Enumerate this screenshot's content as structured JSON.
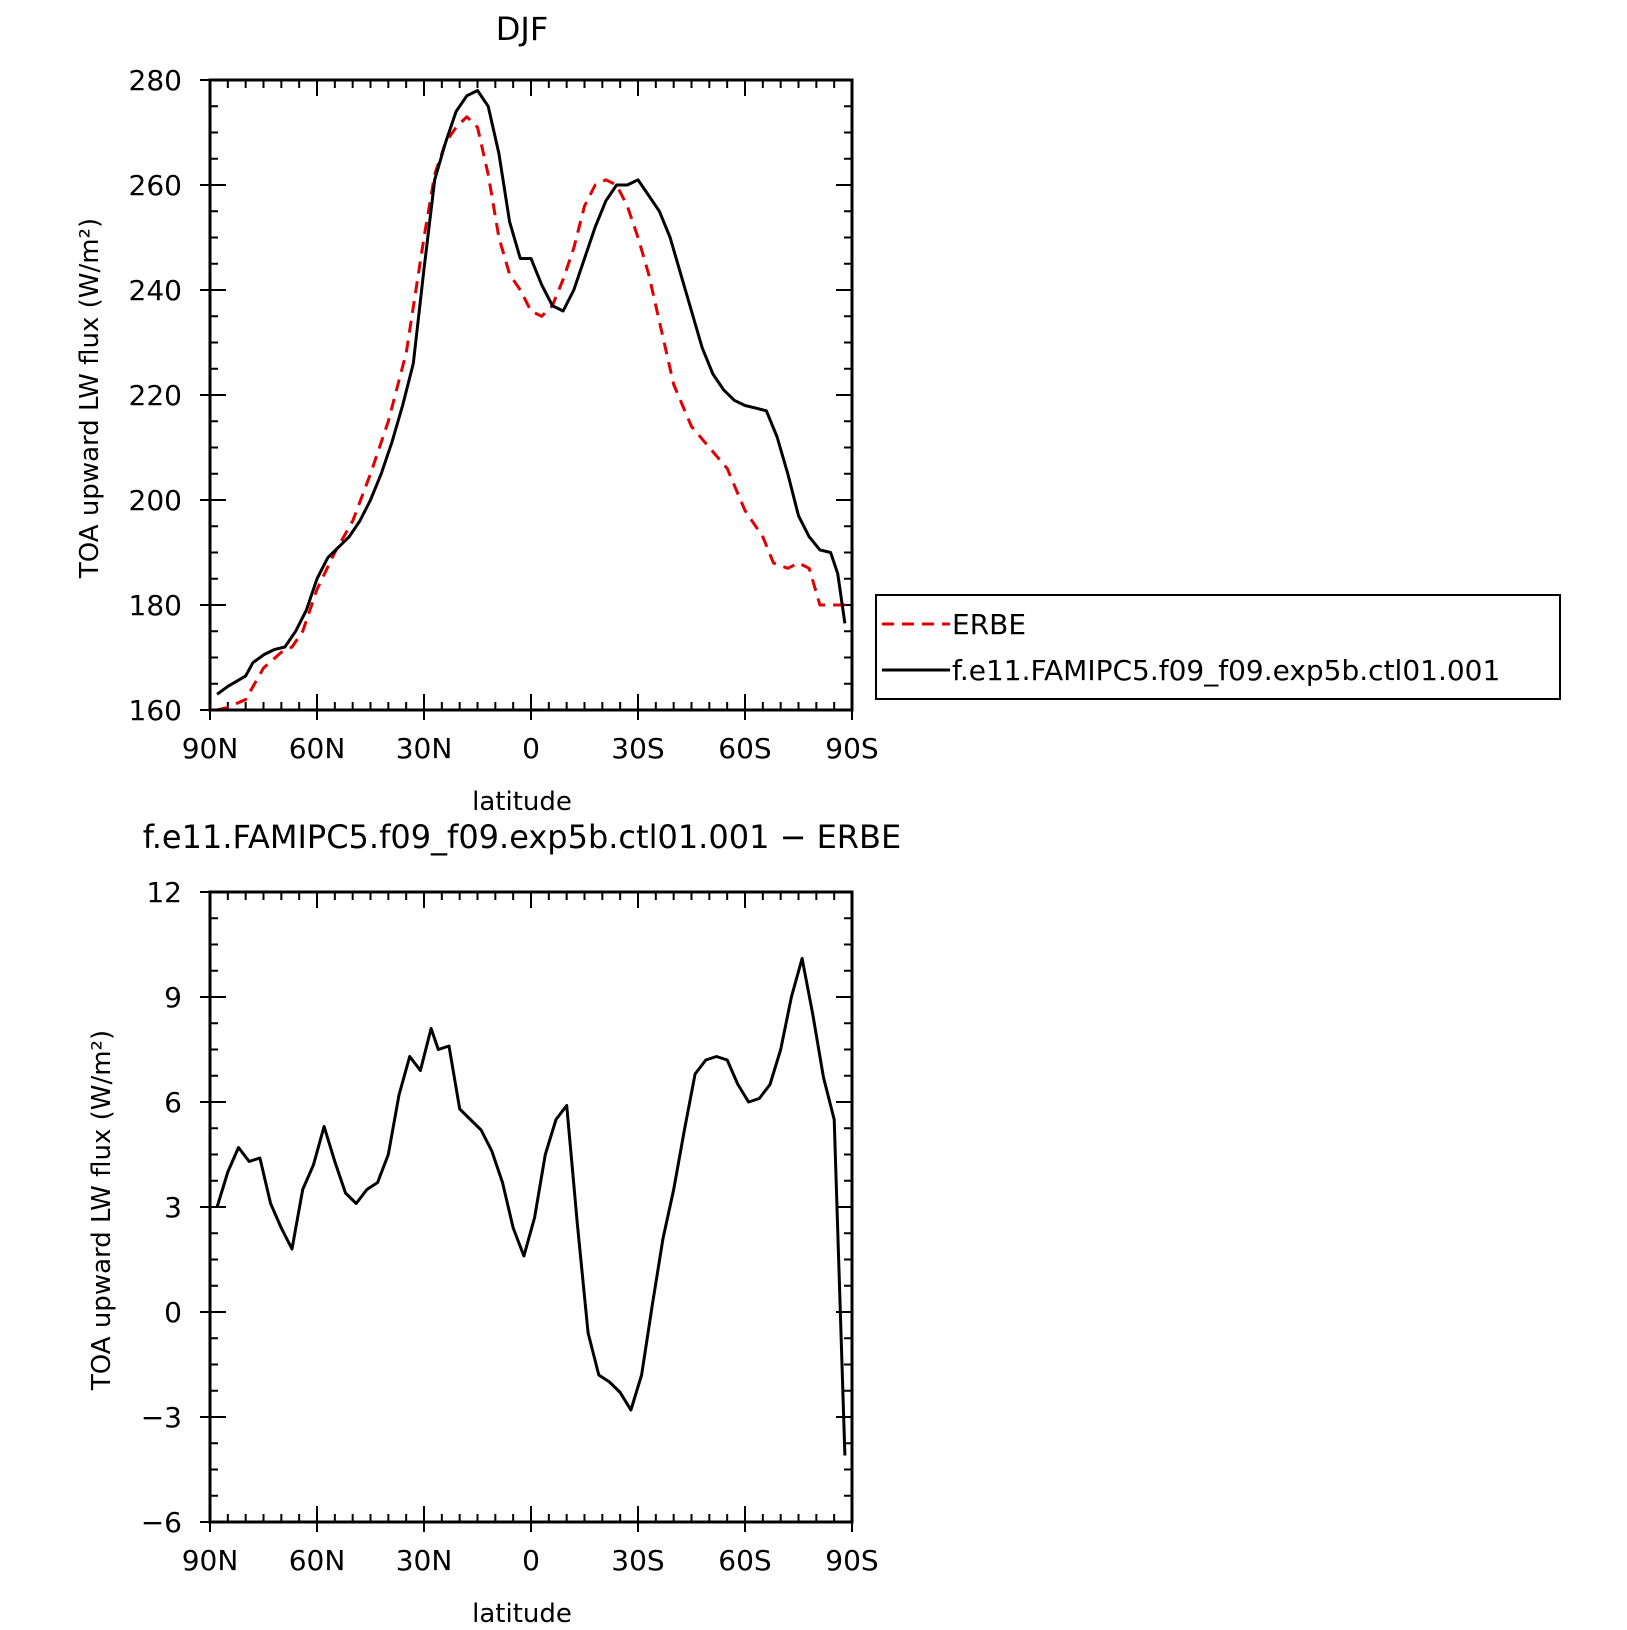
{
  "chart_data": [
    {
      "type": "line",
      "title": "DJF",
      "xlabel": "latitude",
      "ylabel": "TOA upward LW flux (W/m²)",
      "xlim": [
        -90,
        90
      ],
      "ylim": [
        160,
        280
      ],
      "xticks": [
        -90,
        -60,
        -30,
        0,
        30,
        60,
        90
      ],
      "xtick_labels": [
        "90N",
        "60N",
        "30N",
        "0",
        "30S",
        "60S",
        "90S"
      ],
      "yticks": [
        160,
        180,
        200,
        220,
        240,
        260,
        280
      ],
      "ytick_labels": [
        "160",
        "180",
        "200",
        "220",
        "240",
        "260",
        "280"
      ],
      "legend": {
        "placement": "right",
        "entries": [
          "ERBE",
          "f.e11.FAMIPC5.f09_f09.exp5b.ctl01.001"
        ]
      },
      "series": [
        {
          "name": "ERBE",
          "color": "#e00000",
          "dash": "dashed",
          "x": [
            -88,
            -85,
            -80,
            -75,
            -70,
            -67,
            -64,
            -60,
            -55,
            -50,
            -45,
            -40,
            -35,
            -30,
            -27,
            -24,
            -21,
            -18,
            -15,
            -12,
            -9,
            -6,
            -3,
            0,
            3,
            6,
            9,
            12,
            15,
            18,
            21,
            24,
            27,
            30,
            33,
            36,
            40,
            45,
            50,
            55,
            60,
            65,
            68,
            72,
            75,
            78,
            81,
            84,
            86,
            88
          ],
          "y": [
            160,
            160.5,
            162,
            168,
            171,
            172,
            175,
            183,
            190,
            196,
            205,
            215,
            228,
            250,
            262,
            268,
            271,
            273,
            271,
            262,
            250,
            243,
            240,
            236,
            235,
            237,
            242,
            248,
            256,
            260,
            261,
            260,
            256,
            250,
            243,
            234,
            222,
            214,
            210,
            206,
            198,
            193,
            188,
            187,
            188,
            187,
            180,
            180,
            180,
            180
          ]
        },
        {
          "name": "f.e11.FAMIPC5.f09_f09.exp5b.ctl01.001",
          "color": "#000000",
          "dash": "solid",
          "x": [
            -88,
            -85,
            -80,
            -78,
            -75,
            -72,
            -69,
            -66,
            -63,
            -60,
            -57,
            -54,
            -51,
            -48,
            -45,
            -42,
            -39,
            -36,
            -33,
            -30,
            -27,
            -24,
            -21,
            -18,
            -15,
            -12,
            -9,
            -6,
            -3,
            0,
            3,
            6,
            9,
            12,
            15,
            18,
            21,
            24,
            27,
            30,
            33,
            36,
            39,
            42,
            45,
            48,
            51,
            54,
            57,
            60,
            63,
            66,
            69,
            72,
            75,
            78,
            81,
            84,
            86,
            88
          ],
          "y": [
            163,
            164.5,
            166.5,
            169,
            170.5,
            171.5,
            172,
            175,
            179,
            185,
            189,
            191,
            193,
            196,
            200,
            205,
            211,
            218,
            226,
            244,
            261,
            268,
            274,
            277,
            278,
            275,
            266,
            253,
            246,
            246,
            241,
            237,
            236,
            240,
            246,
            252,
            257,
            260,
            260,
            261,
            258,
            255,
            250,
            243,
            236,
            229,
            224,
            221,
            219,
            218,
            217.5,
            217,
            212,
            205,
            197,
            193,
            190.5,
            190,
            186,
            176.5
          ]
        }
      ]
    },
    {
      "type": "line",
      "title": "f.e11.FAMIPC5.f09_f09.exp5b.ctl01.001 − ERBE",
      "xlabel": "latitude",
      "ylabel": "TOA upward LW flux (W/m²)",
      "xlim": [
        -90,
        90
      ],
      "ylim": [
        -6,
        12
      ],
      "xticks": [
        -90,
        -60,
        -30,
        0,
        30,
        60,
        90
      ],
      "xtick_labels": [
        "90N",
        "60N",
        "30N",
        "0",
        "30S",
        "60S",
        "90S"
      ],
      "yticks": [
        -6,
        -3,
        0,
        3,
        6,
        9,
        12
      ],
      "ytick_labels": [
        "−6",
        "−3",
        "0",
        "3",
        "6",
        "9",
        "12"
      ],
      "series": [
        {
          "color": "#000000",
          "dash": "solid",
          "x": [
            -88,
            -85,
            -82,
            -79,
            -76,
            -73,
            -70,
            -67,
            -64,
            -61,
            -58,
            -55,
            -52,
            -49,
            -46,
            -43,
            -40,
            -37,
            -34,
            -31,
            -28,
            -26,
            -23,
            -20,
            -17,
            -14,
            -11,
            -8,
            -5,
            -2,
            1,
            4,
            7,
            10,
            13,
            16,
            19,
            22,
            25,
            28,
            31,
            34,
            37,
            40,
            43,
            46,
            49,
            52,
            55,
            58,
            61,
            64,
            67,
            70,
            73,
            76,
            79,
            82,
            85,
            88
          ],
          "y": [
            3,
            4,
            4.7,
            4.3,
            4.4,
            3.1,
            2.4,
            1.8,
            3.5,
            4.2,
            5.3,
            4.3,
            3.4,
            3.1,
            3.5,
            3.7,
            4.5,
            6.2,
            7.3,
            6.9,
            8.1,
            7.5,
            7.6,
            5.8,
            5.5,
            5.2,
            4.6,
            3.7,
            2.4,
            1.6,
            2.7,
            4.5,
            5.5,
            5.9,
            2.5,
            -0.6,
            -1.8,
            -2.0,
            -2.3,
            -2.8,
            -1.8,
            0.2,
            2.1,
            3.5,
            5.2,
            6.8,
            7.2,
            7.3,
            7.2,
            6.5,
            6.0,
            6.1,
            6.5,
            7.5,
            9.0,
            10.1,
            8.5,
            6.7,
            5.5,
            -4.1
          ]
        }
      ]
    }
  ]
}
